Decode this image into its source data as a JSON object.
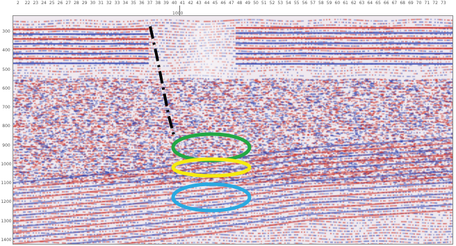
{
  "figure": {
    "description_visible_text": "",
    "colors": {
      "positive_amplitude": "#cc2a22",
      "negative_amplitude": "#2b3fae",
      "background": "#efe9ef",
      "fault_line": "#000000",
      "ellipse_top": "#22a744",
      "ellipse_middle": "#f5ea10",
      "ellipse_bottom": "#29a9e0"
    },
    "top_axis_ticks": [
      "2",
      "22",
      "23",
      "24",
      "25",
      "26",
      "27",
      "28",
      "29",
      "30",
      "31",
      "32",
      "33",
      "34",
      "35",
      "36",
      "37",
      "38",
      "39",
      "40",
      "41",
      "42",
      "43",
      "44",
      "45",
      "46",
      "47",
      "48",
      "49",
      "50",
      "51",
      "52",
      "53",
      "54",
      "55",
      "56",
      "57",
      "58",
      "59",
      "60",
      "61",
      "62",
      "63",
      "64",
      "65",
      "66",
      "67",
      "68",
      "69",
      "70",
      "71",
      "72",
      "73"
    ],
    "left_axis_ticks": [
      "300",
      "400",
      "500",
      "600",
      "700",
      "800",
      "900",
      "1000",
      "1100",
      "1200",
      "1300",
      "1400"
    ],
    "marker_label": "1000",
    "annotations": [
      {
        "name": "fault-line",
        "type": "dash-dot line"
      },
      {
        "name": "ellipse-top",
        "color": "green"
      },
      {
        "name": "ellipse-middle",
        "color": "yellow"
      },
      {
        "name": "ellipse-bottom",
        "color": "blue"
      }
    ]
  }
}
